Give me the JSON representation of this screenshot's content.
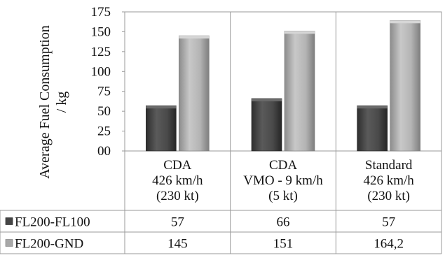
{
  "chart_data": {
    "type": "bar",
    "ylabel": "Average Fuel Consumption / kg",
    "ylabel_lines": [
      "Average Fuel Consumption",
      "/ kg"
    ],
    "ylim": [
      0,
      175
    ],
    "y_ticks": [
      "00",
      "25",
      "50",
      "75",
      "100",
      "125",
      "150",
      "175"
    ],
    "y_tick_values": [
      0,
      25,
      50,
      75,
      100,
      125,
      150,
      175
    ],
    "grid": "vertical category dividers",
    "legend": "data-table",
    "categories": [
      [
        "CDA",
        "426 km/h",
        "(230 kt)"
      ],
      [
        "CDA",
        "VMO - 9 km/h",
        "(5 kt)"
      ],
      [
        "Standard",
        "426 km/h",
        "(230 kt)"
      ]
    ],
    "series": [
      {
        "name": "FL200-FL100",
        "color": "#454545",
        "values": [
          57,
          66,
          57
        ],
        "labels": [
          "57",
          "66",
          "57"
        ]
      },
      {
        "name": "FL200-GND",
        "color": "#a8a8a8",
        "values": [
          145,
          151,
          164.2
        ],
        "labels": [
          "145",
          "151",
          "164,2"
        ]
      }
    ]
  }
}
